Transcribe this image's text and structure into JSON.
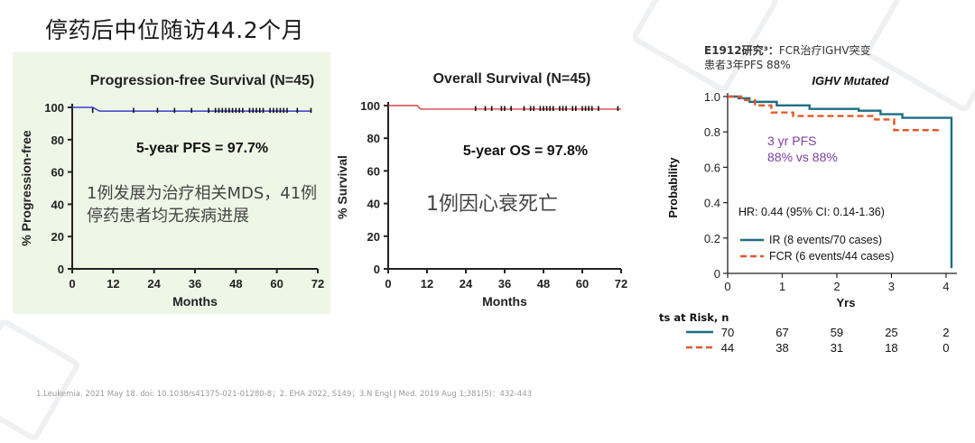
{
  "slide": {
    "title": "停药后中位随访44.2个月",
    "footnote": "1.Leukemia. 2021 May 18. doi: 10.1038/s41375-021-01280-8；2. EHA 2022, S149；3.N Engl J Med. 2019 Aug 1;381(5)：432-443"
  },
  "colors": {
    "accent_green_panel": "#eef6e6",
    "pfs_line": "#3b3bd0",
    "os_line": "#d94040",
    "ir_line": "#1d6d83",
    "fcr_line": "#e2582a",
    "annot_purple": "#7b3fa0"
  },
  "annotations": {
    "left": "1例发展为治疗相关MDS，41例停药患者均无疾病进展",
    "mid": "1例因心衰死亡"
  },
  "right_header": {
    "study": "E1912研究³：",
    "desc1": "FCR治疗IGHV突变",
    "desc2": "患者3年PFS 88%"
  },
  "chart_data": [
    {
      "type": "line",
      "title": "Progression-free Survival (N=45)",
      "xlabel": "Months",
      "ylabel": "% Progression-free",
      "xlim": [
        0,
        72
      ],
      "ylim": [
        0,
        100
      ],
      "xticks": [
        "0",
        "12",
        "24",
        "36",
        "48",
        "60",
        "72"
      ],
      "yticks": [
        "0",
        "20",
        "40",
        "60",
        "80",
        "100"
      ],
      "stat_label": "5-year PFS = 97.7%",
      "series": [
        {
          "x": [
            0,
            6,
            8,
            70
          ],
          "y": [
            100,
            100,
            97.7,
            97.7
          ]
        }
      ],
      "censor_x": [
        6,
        18,
        25,
        30,
        35,
        40,
        42,
        43,
        44,
        45,
        46,
        47,
        48,
        49,
        50,
        52,
        53,
        54,
        55,
        56,
        58,
        59,
        60,
        61,
        62,
        63,
        66,
        70
      ]
    },
    {
      "type": "line",
      "title": "Overall Survival (N=45)",
      "xlabel": "Months",
      "ylabel": "% Survival",
      "xlim": [
        0,
        72
      ],
      "ylim": [
        0,
        100
      ],
      "xticks": [
        "0",
        "12",
        "24",
        "36",
        "48",
        "60",
        "72"
      ],
      "yticks": [
        "0",
        "20",
        "40",
        "60",
        "80",
        "100"
      ],
      "stat_label": "5-year OS = 97.8%",
      "series": [
        {
          "x": [
            0,
            9,
            10,
            72
          ],
          "y": [
            100,
            100,
            97.8,
            97.8
          ]
        }
      ],
      "censor_x": [
        27,
        30,
        32,
        35,
        36,
        38,
        42,
        44,
        45,
        47,
        48,
        49,
        50,
        51,
        53,
        54,
        55,
        57,
        58,
        60,
        61,
        62,
        63,
        65,
        71
      ]
    },
    {
      "type": "line",
      "title": "IGHV Mutated",
      "xlabel": "Yrs",
      "ylabel": "Probability",
      "xlim": [
        0,
        4.2
      ],
      "ylim": [
        0,
        1.0
      ],
      "xticks": [
        "0",
        "1",
        "2",
        "3",
        "4"
      ],
      "yticks": [
        "0",
        "0.2",
        "0.4",
        "0.6",
        "0.8",
        "1.0"
      ],
      "annotation": [
        "3 yr PFS",
        "88% vs 88%"
      ],
      "hr_text": "HR: 0.44 (95% CI: 0.14-1.36)",
      "series": [
        {
          "name": "IR (8 events/70 cases)",
          "x": [
            0,
            0.2,
            0.2,
            0.4,
            0.4,
            0.9,
            0.9,
            1.5,
            1.5,
            2.4,
            2.4,
            2.8,
            2.8,
            3.2,
            3.2,
            4.1,
            4.1
          ],
          "y": [
            1.0,
            1.0,
            0.99,
            0.99,
            0.97,
            0.97,
            0.95,
            0.95,
            0.93,
            0.93,
            0.92,
            0.92,
            0.9,
            0.9,
            0.88,
            0.88,
            0.03
          ]
        },
        {
          "name": "FCR (6 events/44 cases)",
          "x": [
            0,
            0.25,
            0.25,
            0.5,
            0.5,
            0.8,
            0.8,
            1.2,
            1.2,
            2.7,
            2.7,
            3.05,
            3.05,
            3.9
          ],
          "y": [
            1.0,
            1.0,
            0.98,
            0.98,
            0.95,
            0.95,
            0.91,
            0.91,
            0.89,
            0.89,
            0.87,
            0.87,
            0.81,
            0.81
          ]
        }
      ],
      "at_risk": {
        "label": "ts at Risk, n",
        "rows": [
          {
            "series": "IR",
            "values": [
              "70",
              "67",
              "59",
              "25",
              "2"
            ]
          },
          {
            "series": "FCR",
            "values": [
              "44",
              "38",
              "31",
              "18",
              "0"
            ]
          }
        ]
      }
    }
  ]
}
